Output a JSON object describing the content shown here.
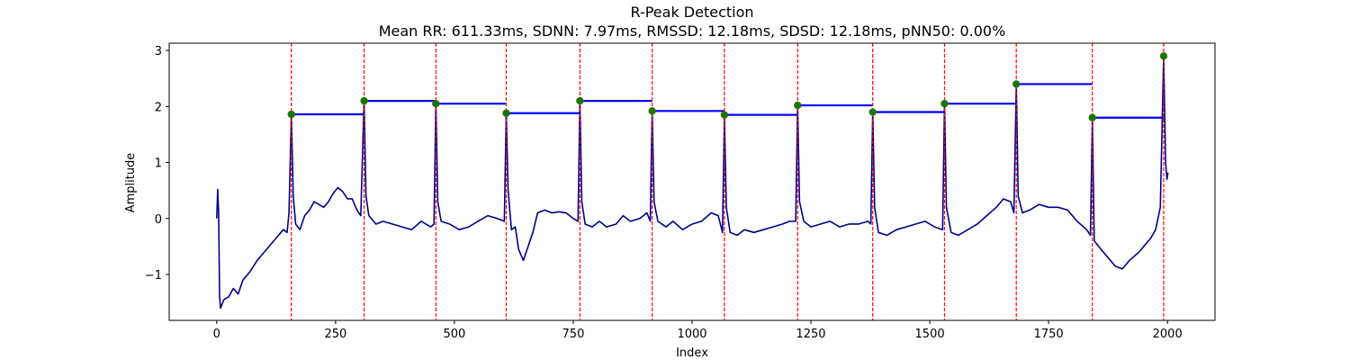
{
  "chart_data": {
    "type": "line",
    "title": "R-Peak Detection",
    "subtitle": "Mean RR: 611.33ms, SDNN: 7.97ms, RMSSD: 12.18ms, SDSD: 12.18ms, pNN50: 0.00%",
    "xlabel": "Index",
    "ylabel": "Amplitude",
    "xlim": [
      -100,
      2100
    ],
    "ylim": [
      -1.82,
      3.13
    ],
    "x_ticks": [
      0,
      250,
      500,
      750,
      1000,
      1250,
      1500,
      1750,
      2000
    ],
    "y_ticks": [
      -1,
      0,
      1,
      2,
      3
    ],
    "x_tick_labels": [
      "0",
      "250",
      "500",
      "750",
      "1000",
      "1250",
      "1500",
      "1750",
      "2000"
    ],
    "y_tick_labels": [
      "−1",
      "0",
      "1",
      "2",
      "3"
    ],
    "grid": false,
    "colors": {
      "signal": "#00008b",
      "peak_line": "#ff0000",
      "peak_marker": "#008000",
      "rr_level": "#0000ff"
    },
    "signal": {
      "name": "",
      "points": [
        [
          0,
          0.0
        ],
        [
          2,
          0.52
        ],
        [
          4,
          0.1
        ],
        [
          6,
          -1.4
        ],
        [
          8,
          -1.6
        ],
        [
          15,
          -1.45
        ],
        [
          25,
          -1.4
        ],
        [
          35,
          -1.25
        ],
        [
          45,
          -1.35
        ],
        [
          55,
          -1.1
        ],
        [
          70,
          -0.95
        ],
        [
          85,
          -0.75
        ],
        [
          100,
          -0.6
        ],
        [
          115,
          -0.45
        ],
        [
          130,
          -0.3
        ],
        [
          140,
          -0.2
        ],
        [
          148,
          -0.25
        ],
        [
          152,
          0.1
        ],
        [
          157,
          1.86
        ],
        [
          161,
          0.4
        ],
        [
          166,
          -0.1
        ],
        [
          175,
          -0.2
        ],
        [
          185,
          0.05
        ],
        [
          195,
          0.15
        ],
        [
          205,
          0.3
        ],
        [
          215,
          0.25
        ],
        [
          225,
          0.2
        ],
        [
          235,
          0.3
        ],
        [
          245,
          0.45
        ],
        [
          255,
          0.55
        ],
        [
          265,
          0.48
        ],
        [
          275,
          0.35
        ],
        [
          285,
          0.35
        ],
        [
          295,
          0.15
        ],
        [
          303,
          0.05
        ],
        [
          310,
          2.1
        ],
        [
          314,
          0.4
        ],
        [
          320,
          0.05
        ],
        [
          335,
          -0.1
        ],
        [
          350,
          -0.05
        ],
        [
          370,
          -0.1
        ],
        [
          390,
          -0.15
        ],
        [
          410,
          -0.2
        ],
        [
          430,
          -0.05
        ],
        [
          450,
          -0.15
        ],
        [
          457,
          -0.1
        ],
        [
          461,
          2.05
        ],
        [
          465,
          0.3
        ],
        [
          472,
          -0.05
        ],
        [
          490,
          -0.1
        ],
        [
          510,
          -0.2
        ],
        [
          530,
          -0.15
        ],
        [
          550,
          -0.05
        ],
        [
          570,
          0.05
        ],
        [
          590,
          0.0
        ],
        [
          605,
          -0.05
        ],
        [
          609,
          1.88
        ],
        [
          613,
          0.5
        ],
        [
          620,
          -0.2
        ],
        [
          628,
          -0.15
        ],
        [
          635,
          -0.55
        ],
        [
          645,
          -0.75
        ],
        [
          655,
          -0.5
        ],
        [
          665,
          -0.25
        ],
        [
          675,
          0.1
        ],
        [
          690,
          0.15
        ],
        [
          705,
          0.1
        ],
        [
          720,
          0.12
        ],
        [
          735,
          0.1
        ],
        [
          750,
          0.0
        ],
        [
          760,
          -0.05
        ],
        [
          764,
          2.1
        ],
        [
          768,
          0.3
        ],
        [
          775,
          -0.1
        ],
        [
          790,
          -0.15
        ],
        [
          805,
          -0.05
        ],
        [
          820,
          -0.15
        ],
        [
          840,
          -0.1
        ],
        [
          855,
          0.05
        ],
        [
          870,
          -0.05
        ],
        [
          890,
          0.0
        ],
        [
          905,
          0.1
        ],
        [
          912,
          -0.05
        ],
        [
          916,
          1.92
        ],
        [
          920,
          0.3
        ],
        [
          928,
          -0.05
        ],
        [
          945,
          -0.15
        ],
        [
          960,
          -0.05
        ],
        [
          980,
          -0.2
        ],
        [
          1000,
          -0.1
        ],
        [
          1020,
          -0.05
        ],
        [
          1040,
          0.1
        ],
        [
          1055,
          0.05
        ],
        [
          1064,
          -0.25
        ],
        [
          1068,
          1.85
        ],
        [
          1072,
          0.2
        ],
        [
          1080,
          -0.25
        ],
        [
          1095,
          -0.3
        ],
        [
          1110,
          -0.2
        ],
        [
          1130,
          -0.25
        ],
        [
          1150,
          -0.2
        ],
        [
          1170,
          -0.15
        ],
        [
          1190,
          -0.1
        ],
        [
          1205,
          -0.05
        ],
        [
          1218,
          -0.05
        ],
        [
          1222,
          2.02
        ],
        [
          1226,
          0.3
        ],
        [
          1235,
          -0.05
        ],
        [
          1250,
          -0.15
        ],
        [
          1270,
          -0.1
        ],
        [
          1290,
          -0.05
        ],
        [
          1310,
          -0.15
        ],
        [
          1330,
          -0.1
        ],
        [
          1350,
          -0.1
        ],
        [
          1370,
          -0.05
        ],
        [
          1376,
          -0.1
        ],
        [
          1380,
          1.9
        ],
        [
          1384,
          0.2
        ],
        [
          1392,
          -0.25
        ],
        [
          1410,
          -0.3
        ],
        [
          1430,
          -0.2
        ],
        [
          1450,
          -0.15
        ],
        [
          1470,
          -0.1
        ],
        [
          1490,
          -0.05
        ],
        [
          1510,
          -0.15
        ],
        [
          1527,
          -0.2
        ],
        [
          1531,
          2.05
        ],
        [
          1535,
          0.2
        ],
        [
          1545,
          -0.25
        ],
        [
          1560,
          -0.3
        ],
        [
          1580,
          -0.2
        ],
        [
          1600,
          -0.1
        ],
        [
          1620,
          0.05
        ],
        [
          1640,
          0.2
        ],
        [
          1655,
          0.35
        ],
        [
          1670,
          0.3
        ],
        [
          1677,
          0.1
        ],
        [
          1682,
          2.4
        ],
        [
          1686,
          0.4
        ],
        [
          1695,
          0.1
        ],
        [
          1710,
          0.15
        ],
        [
          1730,
          0.25
        ],
        [
          1750,
          0.2
        ],
        [
          1770,
          0.2
        ],
        [
          1790,
          0.15
        ],
        [
          1810,
          -0.05
        ],
        [
          1830,
          -0.2
        ],
        [
          1838,
          -0.3
        ],
        [
          1842,
          1.8
        ],
        [
          1846,
          -0.4
        ],
        [
          1860,
          -0.55
        ],
        [
          1875,
          -0.7
        ],
        [
          1890,
          -0.85
        ],
        [
          1905,
          -0.9
        ],
        [
          1920,
          -0.75
        ],
        [
          1940,
          -0.6
        ],
        [
          1955,
          -0.45
        ],
        [
          1965,
          -0.35
        ],
        [
          1975,
          -0.2
        ],
        [
          1985,
          0.2
        ],
        [
          1992,
          2.9
        ],
        [
          1996,
          1.0
        ],
        [
          1999,
          0.7
        ],
        [
          2001,
          0.82
        ]
      ]
    },
    "r_peaks": {
      "x": [
        157,
        310,
        461,
        609,
        764,
        916,
        1068,
        1222,
        1380,
        1531,
        1682,
        1842,
        1992
      ],
      "y": [
        1.86,
        2.1,
        2.05,
        1.88,
        2.1,
        1.92,
        1.85,
        2.02,
        1.9,
        2.05,
        2.4,
        1.8,
        2.9
      ]
    }
  }
}
